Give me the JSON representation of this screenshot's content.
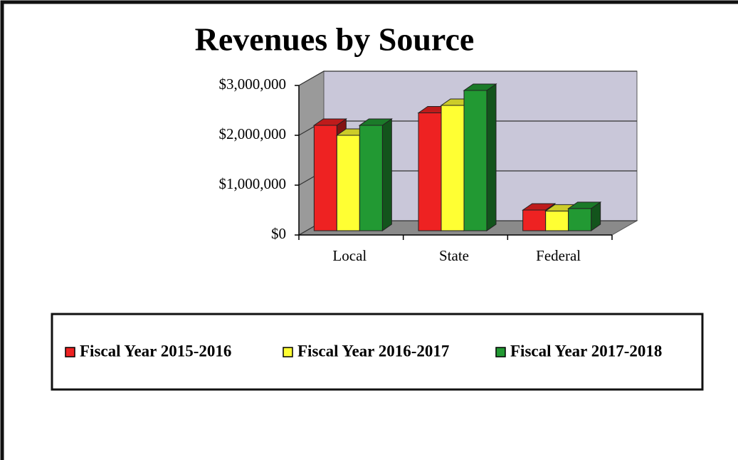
{
  "chart_data": {
    "type": "bar3d",
    "title": "Revenues by Source",
    "categories": [
      "Local",
      "State",
      "Federal"
    ],
    "series": [
      {
        "name": "Fiscal Year 2015-2016",
        "color": "#ee2222",
        "values": [
          2200000,
          2450000,
          500000
        ]
      },
      {
        "name": "Fiscal Year 2016-2017",
        "color": "#ffff33",
        "values": [
          2000000,
          2600000,
          480000
        ]
      },
      {
        "name": "Fiscal Year 2017-2018",
        "color": "#229933",
        "values": [
          2200000,
          2900000,
          530000
        ]
      }
    ],
    "ylim": [
      0,
      3000000
    ],
    "yticks": [
      {
        "value": 0,
        "label": "$0"
      },
      {
        "value": 1000000,
        "label": "$1,000,000"
      },
      {
        "value": 2000000,
        "label": "$2,000,000"
      },
      {
        "value": 3000000,
        "label": "$3,000,000"
      }
    ],
    "grid": true,
    "legend": "bottom"
  }
}
